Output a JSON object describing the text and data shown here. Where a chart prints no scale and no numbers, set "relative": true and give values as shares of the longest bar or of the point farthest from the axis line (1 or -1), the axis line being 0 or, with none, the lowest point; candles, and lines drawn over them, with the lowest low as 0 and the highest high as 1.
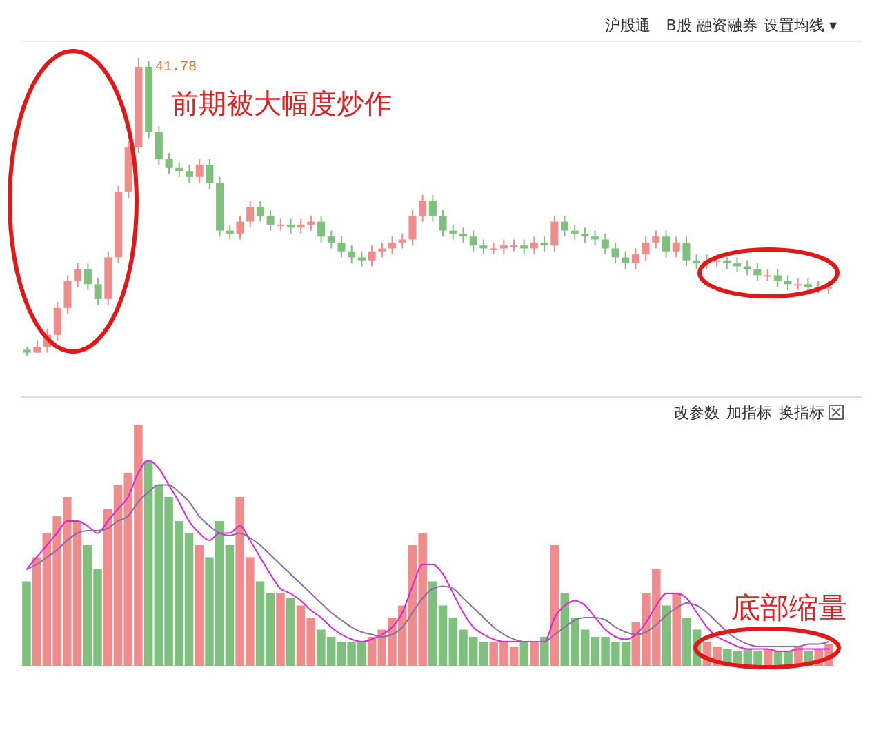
{
  "chart_data": [
    {
      "type": "candlestick",
      "relative": true,
      "categories": [
        null,
        null,
        null,
        null,
        null,
        null,
        null,
        null,
        null,
        null,
        null,
        null,
        null,
        null,
        null,
        null,
        null,
        null,
        null,
        null,
        null,
        null,
        null,
        null,
        null,
        null,
        null,
        null,
        null,
        null,
        null,
        null,
        null,
        null,
        null,
        null,
        null,
        null,
        null,
        null,
        null,
        null,
        null,
        null,
        null,
        null,
        null,
        null,
        null,
        null,
        null,
        null,
        null,
        null,
        null,
        null,
        null,
        null,
        null,
        null,
        null,
        null,
        null,
        null,
        null,
        null,
        null,
        null,
        null,
        null,
        null,
        null,
        null,
        null,
        null,
        null,
        null,
        null,
        null,
        null
      ],
      "ohlc": [
        [
          0.02,
          0.03,
          0,
          0.01
        ],
        [
          0.01,
          0.05,
          0.01,
          0.03
        ],
        [
          0.03,
          0.09,
          0.01,
          0.07
        ],
        [
          0.07,
          0.18,
          0.05,
          0.16
        ],
        [
          0.16,
          0.27,
          0.14,
          0.25
        ],
        [
          0.25,
          0.31,
          0.23,
          0.29
        ],
        [
          0.29,
          0.31,
          0.22,
          0.24
        ],
        [
          0.24,
          0.26,
          0.17,
          0.19
        ],
        [
          0.19,
          0.35,
          0.17,
          0.33
        ],
        [
          0.33,
          0.57,
          0.31,
          0.55
        ],
        [
          0.55,
          0.72,
          0.53,
          0.7
        ],
        [
          0.7,
          1,
          0.68,
          0.97
        ],
        [
          0.97,
          0.99,
          0.73,
          0.75
        ],
        [
          0.75,
          0.77,
          0.64,
          0.66
        ],
        [
          0.66,
          0.68,
          0.61,
          0.63
        ],
        [
          0.63,
          0.65,
          0.6,
          0.62
        ],
        [
          0.62,
          0.64,
          0.58,
          0.6
        ],
        [
          0.6,
          0.66,
          0.58,
          0.64
        ],
        [
          0.64,
          0.66,
          0.56,
          0.58
        ],
        [
          0.58,
          0.6,
          0.4,
          0.42
        ],
        [
          0.42,
          0.44,
          0.39,
          0.41
        ],
        [
          0.41,
          0.47,
          0.39,
          0.45
        ],
        [
          0.45,
          0.52,
          0.43,
          0.5
        ],
        [
          0.5,
          0.52,
          0.45,
          0.47
        ],
        [
          0.47,
          0.49,
          0.42,
          0.44
        ],
        [
          0.44,
          0.46,
          0.42,
          0.44
        ],
        [
          0.44,
          0.46,
          0.41,
          0.43
        ],
        [
          0.43,
          0.46,
          0.41,
          0.44
        ],
        [
          0.44,
          0.47,
          0.42,
          0.45
        ],
        [
          0.45,
          0.47,
          0.38,
          0.4
        ],
        [
          0.4,
          0.42,
          0.36,
          0.38
        ],
        [
          0.38,
          0.4,
          0.33,
          0.35
        ],
        [
          0.35,
          0.37,
          0.31,
          0.33
        ],
        [
          0.33,
          0.35,
          0.3,
          0.32
        ],
        [
          0.32,
          0.37,
          0.3,
          0.35
        ],
        [
          0.35,
          0.38,
          0.33,
          0.36
        ],
        [
          0.36,
          0.4,
          0.34,
          0.38
        ],
        [
          0.38,
          0.41,
          0.36,
          0.39
        ],
        [
          0.39,
          0.49,
          0.37,
          0.47
        ],
        [
          0.47,
          0.54,
          0.45,
          0.52
        ],
        [
          0.52,
          0.54,
          0.45,
          0.47
        ],
        [
          0.47,
          0.49,
          0.4,
          0.42
        ],
        [
          0.42,
          0.44,
          0.39,
          0.41
        ],
        [
          0.41,
          0.43,
          0.38,
          0.4
        ],
        [
          0.4,
          0.42,
          0.35,
          0.37
        ],
        [
          0.37,
          0.39,
          0.34,
          0.36
        ],
        [
          0.36,
          0.38,
          0.34,
          0.36
        ],
        [
          0.36,
          0.39,
          0.34,
          0.37
        ],
        [
          0.37,
          0.39,
          0.35,
          0.37
        ],
        [
          0.37,
          0.39,
          0.34,
          0.36
        ],
        [
          0.36,
          0.4,
          0.34,
          0.38
        ],
        [
          0.38,
          0.4,
          0.35,
          0.37
        ],
        [
          0.37,
          0.47,
          0.35,
          0.45
        ],
        [
          0.45,
          0.47,
          0.4,
          0.42
        ],
        [
          0.42,
          0.44,
          0.39,
          0.41
        ],
        [
          0.41,
          0.43,
          0.38,
          0.4
        ],
        [
          0.4,
          0.42,
          0.37,
          0.39
        ],
        [
          0.39,
          0.41,
          0.34,
          0.36
        ],
        [
          0.36,
          0.38,
          0.31,
          0.33
        ],
        [
          0.33,
          0.35,
          0.29,
          0.31
        ],
        [
          0.31,
          0.36,
          0.29,
          0.34
        ],
        [
          0.34,
          0.4,
          0.32,
          0.38
        ],
        [
          0.38,
          0.42,
          0.36,
          0.4
        ],
        [
          0.4,
          0.42,
          0.33,
          0.35
        ],
        [
          0.35,
          0.4,
          0.33,
          0.38
        ],
        [
          0.38,
          0.4,
          0.3,
          0.32
        ],
        [
          0.32,
          0.34,
          0.29,
          0.31
        ],
        [
          0.31,
          0.34,
          0.29,
          0.32
        ],
        [
          0.32,
          0.34,
          0.3,
          0.32
        ],
        [
          0.32,
          0.34,
          0.29,
          0.31
        ],
        [
          0.31,
          0.33,
          0.28,
          0.3
        ],
        [
          0.3,
          0.32,
          0.27,
          0.29
        ],
        [
          0.29,
          0.31,
          0.25,
          0.27
        ],
        [
          0.27,
          0.29,
          0.25,
          0.27
        ],
        [
          0.27,
          0.29,
          0.23,
          0.25
        ],
        [
          0.25,
          0.27,
          0.22,
          0.24
        ],
        [
          0.24,
          0.26,
          0.22,
          0.24
        ],
        [
          0.24,
          0.26,
          0.21,
          0.23
        ],
        [
          0.23,
          0.25,
          0.21,
          0.23
        ],
        [
          0.23,
          0.25,
          0.21,
          0.23
        ]
      ],
      "colors": [
        "#7fc07f",
        "#f08c8c",
        "#f08c8c",
        "#f08c8c",
        "#f08c8c",
        "#f08c8c",
        "#7fc07f",
        "#7fc07f",
        "#f08c8c",
        "#f08c8c",
        "#f08c8c",
        "#f08c8c",
        "#7fc07f",
        "#7fc07f",
        "#7fc07f",
        "#7fc07f",
        "#7fc07f",
        "#f08c8c",
        "#7fc07f",
        "#7fc07f",
        "#7fc07f",
        "#f08c8c",
        "#f08c8c",
        "#7fc07f",
        "#7fc07f",
        "#f08c8c",
        "#7fc07f",
        "#f08c8c",
        "#f08c8c",
        "#7fc07f",
        "#7fc07f",
        "#7fc07f",
        "#7fc07f",
        "#7fc07f",
        "#f08c8c",
        "#f08c8c",
        "#f08c8c",
        "#f08c8c",
        "#f08c8c",
        "#f08c8c",
        "#7fc07f",
        "#7fc07f",
        "#7fc07f",
        "#7fc07f",
        "#7fc07f",
        "#7fc07f",
        "#f08c8c",
        "#f08c8c",
        "#f08c8c",
        "#7fc07f",
        "#f08c8c",
        "#7fc07f",
        "#f08c8c",
        "#7fc07f",
        "#7fc07f",
        "#7fc07f",
        "#7fc07f",
        "#7fc07f",
        "#7fc07f",
        "#7fc07f",
        "#f08c8c",
        "#f08c8c",
        "#f08c8c",
        "#7fc07f",
        "#f08c8c",
        "#7fc07f",
        "#7fc07f",
        "#f08c8c",
        "#f08c8c",
        "#7fc07f",
        "#7fc07f",
        "#7fc07f",
        "#7fc07f",
        "#f08c8c",
        "#7fc07f",
        "#7fc07f",
        "#f08c8c",
        "#7fc07f",
        "#f08c8c",
        "#f08c8c"
      ],
      "annotations": [
        "41.78",
        "前期被大幅度炒作",
        "沪股通",
        "B股",
        "融资融券",
        "设置均线 ▾"
      ]
    },
    {
      "type": "bar",
      "relative": true,
      "categories": [
        null,
        null,
        null,
        null,
        null,
        null,
        null,
        null,
        null,
        null,
        null,
        null,
        null,
        null,
        null,
        null,
        null,
        null,
        null,
        null,
        null,
        null,
        null,
        null,
        null,
        null,
        null,
        null,
        null,
        null,
        null,
        null,
        null,
        null,
        null,
        null,
        null,
        null,
        null,
        null,
        null,
        null,
        null,
        null,
        null,
        null,
        null,
        null,
        null,
        null,
        null,
        null,
        null,
        null,
        null,
        null,
        null,
        null,
        null,
        null,
        null,
        null,
        null,
        null,
        null,
        null,
        null,
        null,
        null,
        null,
        null,
        null,
        null,
        null,
        null,
        null,
        null,
        null,
        null,
        null
      ],
      "series": [
        {
          "type": "bar",
          "colors": [
            "#7fc07f",
            "#f08c8c",
            "#f08c8c",
            "#f08c8c",
            "#f08c8c",
            "#f08c8c",
            "#7fc07f",
            "#7fc07f",
            "#f08c8c",
            "#f08c8c",
            "#f08c8c",
            "#f08c8c",
            "#7fc07f",
            "#7fc07f",
            "#7fc07f",
            "#7fc07f",
            "#7fc07f",
            "#f08c8c",
            "#7fc07f",
            "#7fc07f",
            "#7fc07f",
            "#f08c8c",
            "#f08c8c",
            "#7fc07f",
            "#7fc07f",
            "#f08c8c",
            "#7fc07f",
            "#f08c8c",
            "#f08c8c",
            "#7fc07f",
            "#7fc07f",
            "#7fc07f",
            "#7fc07f",
            "#7fc07f",
            "#f08c8c",
            "#f08c8c",
            "#f08c8c",
            "#f08c8c",
            "#f08c8c",
            "#f08c8c",
            "#7fc07f",
            "#7fc07f",
            "#7fc07f",
            "#7fc07f",
            "#7fc07f",
            "#7fc07f",
            "#f08c8c",
            "#f08c8c",
            "#f08c8c",
            "#7fc07f",
            "#f08c8c",
            "#7fc07f",
            "#f08c8c",
            "#7fc07f",
            "#7fc07f",
            "#7fc07f",
            "#7fc07f",
            "#7fc07f",
            "#7fc07f",
            "#7fc07f",
            "#f08c8c",
            "#f08c8c",
            "#f08c8c",
            "#7fc07f",
            "#f08c8c",
            "#7fc07f",
            "#7fc07f",
            "#f08c8c",
            "#f08c8c",
            "#7fc07f",
            "#7fc07f",
            "#7fc07f",
            "#7fc07f",
            "#f08c8c",
            "#7fc07f",
            "#7fc07f",
            "#f08c8c",
            "#7fc07f",
            "#f08c8c",
            "#f08c8c"
          ],
          "values": [
            0.35,
            0.45,
            0.55,
            0.62,
            0.7,
            0.6,
            0.5,
            0.4,
            0.65,
            0.75,
            0.8,
            1.0,
            0.85,
            0.75,
            0.7,
            0.6,
            0.55,
            0.5,
            0.45,
            0.6,
            0.5,
            0.7,
            0.45,
            0.35,
            0.3,
            0.3,
            0.28,
            0.25,
            0.2,
            0.15,
            0.12,
            0.1,
            0.1,
            0.1,
            0.12,
            0.15,
            0.2,
            0.25,
            0.5,
            0.55,
            0.35,
            0.25,
            0.2,
            0.15,
            0.12,
            0.1,
            0.1,
            0.1,
            0.08,
            0.1,
            0.1,
            0.12,
            0.5,
            0.3,
            0.2,
            0.15,
            0.12,
            0.12,
            0.1,
            0.1,
            0.18,
            0.3,
            0.4,
            0.25,
            0.3,
            0.2,
            0.15,
            0.1,
            0.08,
            0.07,
            0.06,
            0.07,
            0.06,
            0.07,
            0.06,
            0.06,
            0.08,
            0.06,
            0.07,
            0.09
          ]
        },
        {
          "type": "line",
          "color": "#e020e0",
          "values": [
            0.4,
            0.45,
            0.5,
            0.55,
            0.6,
            0.6,
            0.58,
            0.55,
            0.6,
            0.65,
            0.7,
            0.8,
            0.85,
            0.82,
            0.75,
            0.68,
            0.6,
            0.55,
            0.52,
            0.55,
            0.55,
            0.58,
            0.52,
            0.45,
            0.38,
            0.32,
            0.3,
            0.27,
            0.23,
            0.2,
            0.16,
            0.13,
            0.11,
            0.1,
            0.11,
            0.13,
            0.16,
            0.22,
            0.33,
            0.42,
            0.42,
            0.38,
            0.3,
            0.22,
            0.16,
            0.13,
            0.11,
            0.1,
            0.1,
            0.1,
            0.1,
            0.1,
            0.2,
            0.25,
            0.27,
            0.25,
            0.2,
            0.15,
            0.12,
            0.11,
            0.13,
            0.18,
            0.25,
            0.3,
            0.3,
            0.28,
            0.22,
            0.16,
            0.12,
            0.1,
            0.08,
            0.07,
            0.07,
            0.07,
            0.06,
            0.06,
            0.07,
            0.07,
            0.07,
            0.07
          ]
        },
        {
          "type": "line",
          "color": "#8a6aa8",
          "values": [
            0.4,
            0.42,
            0.45,
            0.48,
            0.52,
            0.55,
            0.56,
            0.56,
            0.57,
            0.6,
            0.62,
            0.68,
            0.72,
            0.75,
            0.75,
            0.72,
            0.68,
            0.62,
            0.58,
            0.55,
            0.54,
            0.55,
            0.53,
            0.5,
            0.46,
            0.42,
            0.38,
            0.34,
            0.3,
            0.26,
            0.22,
            0.19,
            0.16,
            0.14,
            0.13,
            0.12,
            0.13,
            0.16,
            0.22,
            0.28,
            0.32,
            0.33,
            0.32,
            0.28,
            0.24,
            0.2,
            0.16,
            0.13,
            0.11,
            0.1,
            0.1,
            0.1,
            0.13,
            0.16,
            0.19,
            0.2,
            0.2,
            0.19,
            0.16,
            0.14,
            0.13,
            0.14,
            0.17,
            0.21,
            0.24,
            0.26,
            0.25,
            0.22,
            0.18,
            0.14,
            0.11,
            0.09,
            0.08,
            0.08,
            0.08,
            0.08,
            0.08,
            0.09,
            0.09,
            0.1
          ]
        }
      ],
      "annotations": [
        "改参数",
        "加指标",
        "换指标",
        "底部缩量"
      ]
    }
  ]
}
